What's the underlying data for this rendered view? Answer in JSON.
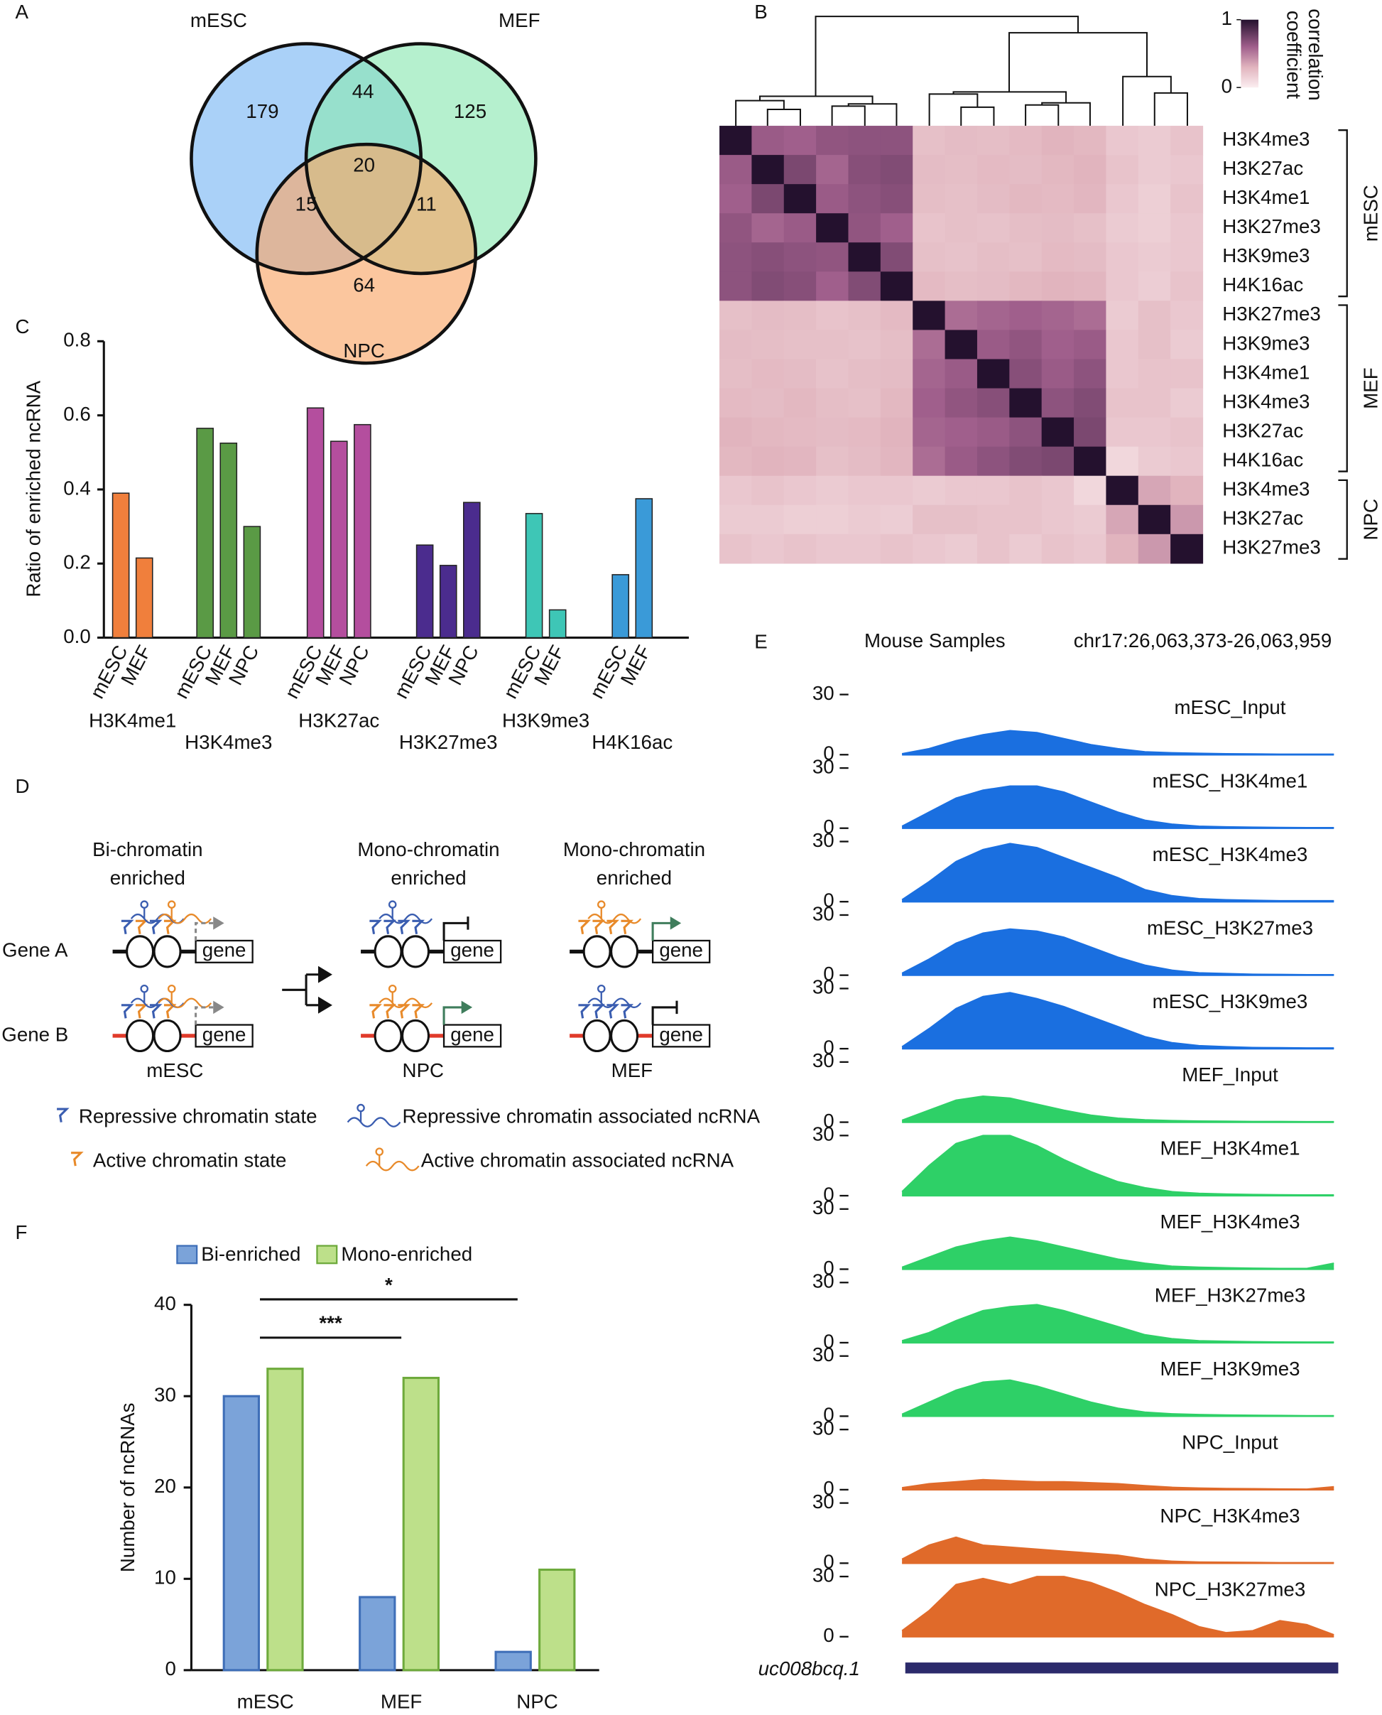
{
  "chart_data": [
    {
      "type": "venn",
      "panel": "A",
      "sets": [
        {
          "name": "mESC",
          "color": "#1a6fe0",
          "fill": "#7cb8f5"
        },
        {
          "name": "MEF",
          "color": "#1ecf6a",
          "fill": "#8ee8b4"
        },
        {
          "name": "NPC",
          "color": "#e8742e",
          "fill": "#f9a86a"
        }
      ],
      "values": [
        179,
        44,
        125,
        20,
        15,
        11,
        64
      ]
    },
    {
      "type": "heatmap",
      "panel": "B",
      "groups": [
        {
          "name": "mESC",
          "color": "#1a6fe0",
          "labels": [
            "H3K4me3",
            "H3K27ac",
            "H3K4me1",
            "H3K27me3",
            "H3K9me3",
            "H4K16ac"
          ]
        },
        {
          "name": "MEF",
          "color": "#1ecf6a",
          "labels": [
            "H3K27me3",
            "H3K9me3",
            "H3K4me1",
            "H3K4me3",
            "H3K27ac",
            "H4K16ac"
          ]
        },
        {
          "name": "NPC",
          "color": "#e8742e",
          "labels": [
            "H3K4me3",
            "H3K27ac",
            "H3K27me3"
          ]
        }
      ],
      "values": [
        [
          1,
          0.62,
          0.6,
          0.65,
          0.66,
          0.66,
          0.24,
          0.26,
          0.25,
          0.27,
          0.3,
          0.28,
          0.2,
          0.18,
          0.22
        ],
        [
          0.62,
          1,
          0.72,
          0.58,
          0.68,
          0.7,
          0.26,
          0.25,
          0.27,
          0.26,
          0.28,
          0.3,
          0.22,
          0.18,
          0.2
        ],
        [
          0.6,
          0.72,
          1,
          0.62,
          0.66,
          0.68,
          0.25,
          0.24,
          0.26,
          0.28,
          0.27,
          0.29,
          0.2,
          0.16,
          0.22
        ],
        [
          0.65,
          0.58,
          0.62,
          1,
          0.65,
          0.6,
          0.22,
          0.24,
          0.23,
          0.25,
          0.26,
          0.24,
          0.18,
          0.16,
          0.2
        ],
        [
          0.66,
          0.68,
          0.66,
          0.65,
          1,
          0.7,
          0.24,
          0.23,
          0.25,
          0.24,
          0.27,
          0.26,
          0.2,
          0.18,
          0.2
        ],
        [
          0.66,
          0.7,
          0.68,
          0.6,
          0.7,
          1,
          0.27,
          0.25,
          0.26,
          0.28,
          0.3,
          0.29,
          0.2,
          0.17,
          0.22
        ],
        [
          0.24,
          0.26,
          0.25,
          0.22,
          0.24,
          0.27,
          1,
          0.55,
          0.58,
          0.6,
          0.58,
          0.55,
          0.18,
          0.24,
          0.2
        ],
        [
          0.26,
          0.25,
          0.24,
          0.24,
          0.23,
          0.25,
          0.55,
          1,
          0.62,
          0.65,
          0.6,
          0.62,
          0.2,
          0.24,
          0.18
        ],
        [
          0.25,
          0.27,
          0.26,
          0.23,
          0.25,
          0.26,
          0.58,
          0.62,
          1,
          0.68,
          0.62,
          0.66,
          0.2,
          0.22,
          0.22
        ],
        [
          0.27,
          0.26,
          0.28,
          0.25,
          0.24,
          0.28,
          0.6,
          0.65,
          0.68,
          1,
          0.66,
          0.7,
          0.22,
          0.22,
          0.18
        ],
        [
          0.3,
          0.28,
          0.27,
          0.26,
          0.27,
          0.3,
          0.58,
          0.6,
          0.62,
          0.66,
          1,
          0.72,
          0.2,
          0.2,
          0.22
        ],
        [
          0.28,
          0.3,
          0.29,
          0.24,
          0.26,
          0.29,
          0.55,
          0.62,
          0.66,
          0.7,
          0.72,
          1,
          0.12,
          0.18,
          0.2
        ],
        [
          0.2,
          0.22,
          0.2,
          0.18,
          0.2,
          0.2,
          0.18,
          0.2,
          0.2,
          0.22,
          0.2,
          0.12,
          1,
          0.35,
          0.3
        ],
        [
          0.18,
          0.18,
          0.16,
          0.16,
          0.18,
          0.17,
          0.24,
          0.24,
          0.22,
          0.22,
          0.2,
          0.18,
          0.35,
          1,
          0.4
        ],
        [
          0.22,
          0.2,
          0.22,
          0.2,
          0.2,
          0.22,
          0.2,
          0.18,
          0.22,
          0.18,
          0.22,
          0.2,
          0.3,
          0.4,
          1
        ]
      ],
      "clim": [
        0,
        1
      ],
      "cticks": [
        0,
        1
      ],
      "colorbar_label": [
        "correlation",
        "coefficient"
      ]
    },
    {
      "type": "grouped_bar",
      "panel": "C",
      "ylabel": "Ratio of enriched ncRNA",
      "ylim": [
        0,
        0.8
      ],
      "yticks": [
        {
          "value": 0,
          "label": "0.0"
        },
        0.2,
        0.4,
        0.6,
        0.8
      ],
      "groups": [
        {
          "name": "H3K4me1",
          "color": "#f07f3c",
          "categories": [
            "mESC",
            "MEF"
          ],
          "values": [
            0.39,
            0.215
          ]
        },
        {
          "name": "H3K4me3",
          "color": "#5a9a45",
          "categories": [
            "mESC",
            "MEF",
            "NPC"
          ],
          "values": [
            0.565,
            0.525,
            0.3
          ]
        },
        {
          "name": "H3K27ac",
          "color": "#b44e9e",
          "categories": [
            "mESC",
            "MEF",
            "NPC"
          ],
          "values": [
            0.62,
            0.53,
            0.575
          ]
        },
        {
          "name": "H3K27me3",
          "color": "#4b2c8e",
          "categories": [
            "mESC",
            "MEF",
            "NPC"
          ],
          "values": [
            0.25,
            0.195,
            0.365
          ]
        },
        {
          "name": "H3K9me3",
          "color": "#3ec6b6",
          "categories": [
            "mESC",
            "MEF"
          ],
          "values": [
            0.335,
            0.075
          ]
        },
        {
          "name": "H4K16ac",
          "color": "#3a9ad8",
          "categories": [
            "mESC",
            "MEF"
          ],
          "values": [
            0.17,
            0.375
          ]
        }
      ]
    },
    {
      "type": "tracks",
      "panel": "E",
      "title": "Mouse Samples",
      "region": "chr17:26,063,373-26,063,959",
      "ylim": [
        0,
        30
      ],
      "yticks": [
        0,
        30
      ],
      "series": [
        {
          "name": "mESC_Input",
          "color": "#1a6fe0",
          "values": [
            0.5,
            3,
            7,
            10,
            12,
            11,
            8,
            5,
            3,
            1.5,
            1,
            0.7,
            0.5,
            0.4,
            0.3,
            0.3,
            0.3
          ]
        },
        {
          "name": "mESC_H3K4me1",
          "color": "#1a6fe0",
          "values": [
            1,
            8,
            15,
            19,
            21,
            21,
            18,
            13,
            8,
            4,
            2,
            1,
            0.7,
            0.5,
            0.4,
            0.3,
            0.3
          ]
        },
        {
          "name": "mESC_H3K4me3",
          "color": "#1a6fe0",
          "values": [
            1,
            10,
            20,
            26,
            29,
            27,
            22,
            17,
            12,
            6,
            3,
            1.5,
            1,
            0.7,
            0.5,
            0.5,
            0.5
          ]
        },
        {
          "name": "mESC_H3K27me3",
          "color": "#1a6fe0",
          "values": [
            1,
            8,
            16,
            21,
            23,
            22,
            19,
            14,
            9,
            5,
            2.5,
            1.2,
            0.8,
            0.5,
            0.4,
            0.3,
            0.3
          ]
        },
        {
          "name": "mESC_H3K9me3",
          "color": "#1a6fe0",
          "values": [
            1,
            10,
            20,
            26,
            28,
            25,
            21,
            16,
            11,
            6,
            3,
            1.5,
            1,
            0.6,
            0.5,
            0.4,
            0.4
          ]
        },
        {
          "name": "MEF_Input",
          "color": "#2ed067",
          "values": [
            1,
            6,
            11,
            13,
            12,
            9,
            6,
            3.5,
            2,
            1.2,
            0.8,
            0.6,
            0.5,
            0.4,
            0.4,
            0.3,
            0.3
          ]
        },
        {
          "name": "MEF_H3K4me1",
          "color": "#2ed067",
          "values": [
            2,
            15,
            26,
            30,
            30,
            25,
            18,
            12,
            7,
            4,
            2,
            1.2,
            0.8,
            0.6,
            0.5,
            0.4,
            0.4
          ]
        },
        {
          "name": "MEF_H3K4me3",
          "color": "#2ed067",
          "values": [
            1,
            6,
            11,
            14,
            16,
            14,
            11,
            8,
            5,
            3,
            1.5,
            1,
            0.7,
            0.5,
            0.4,
            0.4,
            3
          ]
        },
        {
          "name": "MEF_H3K27me3",
          "color": "#2ed067",
          "values": [
            1,
            5,
            11,
            16,
            18,
            19,
            16,
            12,
            8,
            4,
            2,
            1,
            0.7,
            0.5,
            0.4,
            0.3,
            0.3
          ]
        },
        {
          "name": "MEF_H3K9me3",
          "color": "#2ed067",
          "values": [
            1,
            7,
            13,
            17,
            18,
            15,
            11,
            7,
            4,
            2,
            1.2,
            0.8,
            0.6,
            0.5,
            0.4,
            0.3,
            0.3
          ]
        },
        {
          "name": "NPC_Input",
          "color": "#e06a2a",
          "values": [
            1,
            3,
            4,
            5,
            4.5,
            4,
            4,
            3.5,
            3,
            2,
            1.2,
            0.8,
            0.6,
            0.5,
            0.4,
            0.3,
            1.5
          ]
        },
        {
          "name": "NPC_H3K4me3",
          "color": "#e06a2a",
          "values": [
            2,
            9,
            13,
            9,
            8,
            7,
            6,
            5,
            4,
            2,
            1,
            0.6,
            0.5,
            0.4,
            0.3,
            0.3,
            0.3
          ]
        },
        {
          "name": "NPC_H3K27me3",
          "color": "#e06a2a",
          "values": [
            3,
            13,
            26,
            29,
            26,
            30,
            30,
            27,
            22,
            16,
            11,
            5,
            2,
            3,
            8,
            6,
            1
          ]
        }
      ],
      "gene": {
        "name": "uc008bcq.1",
        "color": "#2b2a6b"
      }
    },
    {
      "type": "bar",
      "panel": "F",
      "ylabel": "Number of ncRNAs",
      "categories": [
        "mESC",
        "MEF",
        "NPC"
      ],
      "series": [
        {
          "name": "Bi-enriched",
          "color": "#7ba3d9",
          "edge": "#3f6fb8",
          "values": [
            30,
            8,
            2
          ]
        },
        {
          "name": "Mono-enriched",
          "color": "#bde08a",
          "edge": "#6eaa3c",
          "values": [
            33,
            32,
            11
          ]
        }
      ],
      "ylim": [
        0,
        40
      ],
      "yticks": [
        0,
        10,
        20,
        30,
        40
      ],
      "annotations": [
        {
          "text": "***",
          "from": "mESC",
          "to": "MEF"
        },
        {
          "text": "*",
          "from": "mESC",
          "to": "NPC"
        }
      ]
    }
  ],
  "diagram": {
    "panel": "D",
    "columns": [
      {
        "title": [
          "Bi-chromatin",
          "enriched"
        ],
        "sample": "mESC"
      },
      {
        "title": [
          "Mono-chromatin",
          "enriched"
        ],
        "sample": "NPC"
      },
      {
        "title": [
          "Mono-chromatin",
          "enriched"
        ],
        "sample": "MEF"
      }
    ],
    "genes": [
      "Gene A",
      "Gene B"
    ],
    "gene_box": "gene",
    "legend": [
      "Repressive chromatin state",
      "Active chromatin state",
      "Repressive chromatin associated ncRNA",
      "Active chromatin associated ncRNA"
    ]
  }
}
